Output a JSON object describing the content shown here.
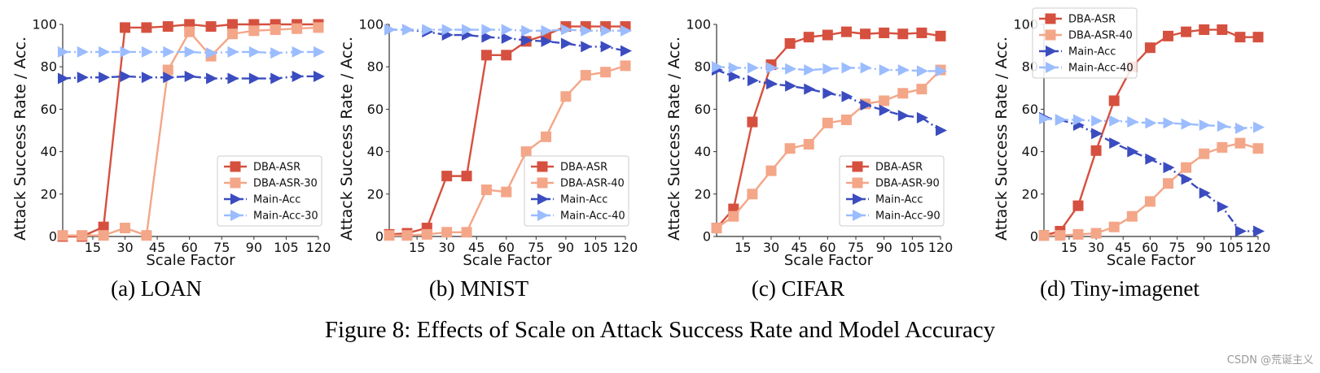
{
  "figure_title": "Figure 8: Effects of Scale on Attack Success Rate and Model Accuracy",
  "watermark": "CSDN @荒诞主义",
  "colors": {
    "DBA-ASR": "#d6503f",
    "DBA-ASR-X": "#f4a688",
    "Main-Acc": "#3b4cc0",
    "Main-Acc-X": "#9bbcff"
  },
  "chart_data": [
    {
      "type": "line",
      "caption": "(a) LOAN",
      "xlabel": "Scale Factor",
      "ylabel": "Attack Success Rate / Acc.",
      "xlim": [
        1,
        120
      ],
      "ylim": [
        0,
        100
      ],
      "xticks": [
        15,
        30,
        45,
        60,
        75,
        90,
        105,
        120
      ],
      "yticks": [
        0,
        20,
        40,
        60,
        80,
        100
      ],
      "grid": false,
      "legend": "lower-right",
      "x": [
        1,
        10,
        20,
        30,
        40,
        50,
        60,
        70,
        80,
        90,
        100,
        110,
        120
      ],
      "series": [
        {
          "name": "DBA-ASR",
          "style": "solid-square",
          "color": "#d6503f",
          "values": [
            0,
            0,
            4.5,
            98.5,
            98.5,
            99,
            100,
            99,
            100,
            100,
            100,
            100,
            100
          ]
        },
        {
          "name": "DBA-ASR-30",
          "style": "solid-square",
          "color": "#f4a688",
          "values": [
            0.5,
            0.5,
            0.5,
            4,
            0.5,
            78.5,
            96.5,
            85,
            95.5,
            97,
            97.5,
            98,
            98.5
          ]
        },
        {
          "name": "Main-Acc",
          "style": "dashdot-triangle",
          "color": "#3b4cc0",
          "values": [
            74.5,
            75,
            75,
            75.5,
            75,
            75,
            75.5,
            74.5,
            74.5,
            74.5,
            74.5,
            75.5,
            75.5
          ]
        },
        {
          "name": "Main-Acc-30",
          "style": "dashdot-triangle",
          "color": "#9bbcff",
          "values": [
            87,
            87,
            87,
            87,
            87,
            87,
            87,
            86.5,
            87,
            87,
            86.5,
            87,
            87
          ]
        }
      ]
    },
    {
      "type": "line",
      "caption": "(b) MNIST",
      "xlabel": "Scale Factor",
      "ylabel": "Attack Success Rate / Acc.",
      "xlim": [
        1,
        120
      ],
      "ylim": [
        0,
        100
      ],
      "xticks": [
        15,
        30,
        45,
        60,
        75,
        90,
        105,
        120
      ],
      "yticks": [
        0,
        20,
        40,
        60,
        80,
        100
      ],
      "grid": false,
      "legend": "lower-right",
      "x": [
        1,
        10,
        20,
        30,
        40,
        50,
        60,
        70,
        80,
        90,
        100,
        110,
        120
      ],
      "series": [
        {
          "name": "DBA-ASR",
          "style": "solid-square",
          "color": "#d6503f",
          "values": [
            1,
            1.5,
            4,
            28.5,
            28.5,
            85.5,
            85.5,
            92,
            95,
            99,
            99,
            99,
            99
          ]
        },
        {
          "name": "DBA-ASR-40",
          "style": "solid-square",
          "color": "#f4a688",
          "values": [
            0.5,
            0.5,
            1,
            2,
            2,
            22,
            21,
            40,
            47,
            66,
            76,
            77.5,
            80.5
          ]
        },
        {
          "name": "Main-Acc",
          "style": "dashdot-triangle",
          "color": "#3b4cc0",
          "values": [
            97.5,
            97.5,
            96.5,
            95,
            95,
            94,
            93.5,
            92.5,
            92,
            91,
            89.5,
            89.5,
            87.5
          ]
        },
        {
          "name": "Main-Acc-40",
          "style": "dashdot-triangle",
          "color": "#9bbcff",
          "values": [
            97.5,
            97.5,
            97.5,
            97.5,
            97.5,
            97.5,
            97.5,
            97,
            97,
            97.5,
            97,
            97,
            97
          ]
        }
      ]
    },
    {
      "type": "line",
      "caption": "(c) CIFAR",
      "xlabel": "Scale Factor",
      "ylabel": "Attack Success Rate / Acc.",
      "xlim": [
        1,
        120
      ],
      "ylim": [
        0,
        100
      ],
      "xticks": [
        15,
        30,
        45,
        60,
        75,
        90,
        105,
        120
      ],
      "yticks": [
        0,
        20,
        40,
        60,
        80,
        100
      ],
      "grid": false,
      "legend": "lower-right",
      "x": [
        1,
        10,
        20,
        30,
        40,
        50,
        60,
        70,
        80,
        90,
        100,
        110,
        120
      ],
      "series": [
        {
          "name": "DBA-ASR",
          "style": "solid-square",
          "color": "#d6503f",
          "values": [
            4,
            13,
            54,
            81,
            91,
            94,
            95,
            96.5,
            95.5,
            96,
            95.5,
            96,
            94.5
          ]
        },
        {
          "name": "DBA-ASR-90",
          "style": "solid-square",
          "color": "#f4a688",
          "values": [
            4,
            9.5,
            20,
            31,
            41.5,
            43.5,
            53.5,
            55,
            62.5,
            64,
            67.5,
            69.5,
            78.5
          ]
        },
        {
          "name": "Main-Acc",
          "style": "dashdot-triangle",
          "color": "#3b4cc0",
          "values": [
            78.5,
            75.5,
            73.5,
            72,
            71,
            69.5,
            67.5,
            66,
            62,
            59.5,
            57,
            56,
            50
          ]
        },
        {
          "name": "Main-Acc-90",
          "style": "dashdot-triangle",
          "color": "#9bbcff",
          "values": [
            80,
            79.5,
            79.5,
            79.5,
            79,
            78.5,
            79,
            79.5,
            79.5,
            78.5,
            78.5,
            78,
            78
          ]
        }
      ]
    },
    {
      "type": "line",
      "caption": "(d) Tiny-imagenet",
      "xlabel": "Scale Factor",
      "ylabel": "Attack Success Rate / Acc.",
      "xlim": [
        1,
        120
      ],
      "ylim": [
        0,
        100
      ],
      "xticks": [
        15,
        30,
        45,
        60,
        75,
        90,
        105,
        120
      ],
      "yticks": [
        0,
        20,
        40,
        60,
        80,
        100
      ],
      "grid": false,
      "legend": "upper-left",
      "x": [
        1,
        10,
        20,
        30,
        40,
        50,
        60,
        70,
        80,
        90,
        100,
        110,
        120
      ],
      "series": [
        {
          "name": "DBA-ASR",
          "style": "solid-square",
          "color": "#d6503f",
          "values": [
            0.5,
            2.5,
            14.5,
            40.5,
            64,
            80,
            89,
            94.5,
            96.5,
            97.5,
            97.5,
            94,
            94
          ]
        },
        {
          "name": "DBA-ASR-40",
          "style": "solid-square",
          "color": "#f4a688",
          "values": [
            0.5,
            0.5,
            1,
            1.5,
            4.5,
            9.5,
            16.5,
            25,
            32.5,
            39,
            42,
            44,
            41.5
          ]
        },
        {
          "name": "Main-Acc",
          "style": "dashdot-triangle",
          "color": "#3b4cc0",
          "values": [
            56,
            55,
            52.5,
            48.5,
            44,
            40,
            36.5,
            32.5,
            27,
            20.5,
            14,
            2.5,
            2.5
          ]
        },
        {
          "name": "Main-Acc-40",
          "style": "dashdot-triangle",
          "color": "#9bbcff",
          "values": [
            55.5,
            55,
            55,
            54.5,
            54.5,
            54,
            53.5,
            53.5,
            53,
            52.5,
            52,
            51,
            51.5
          ]
        }
      ]
    }
  ]
}
